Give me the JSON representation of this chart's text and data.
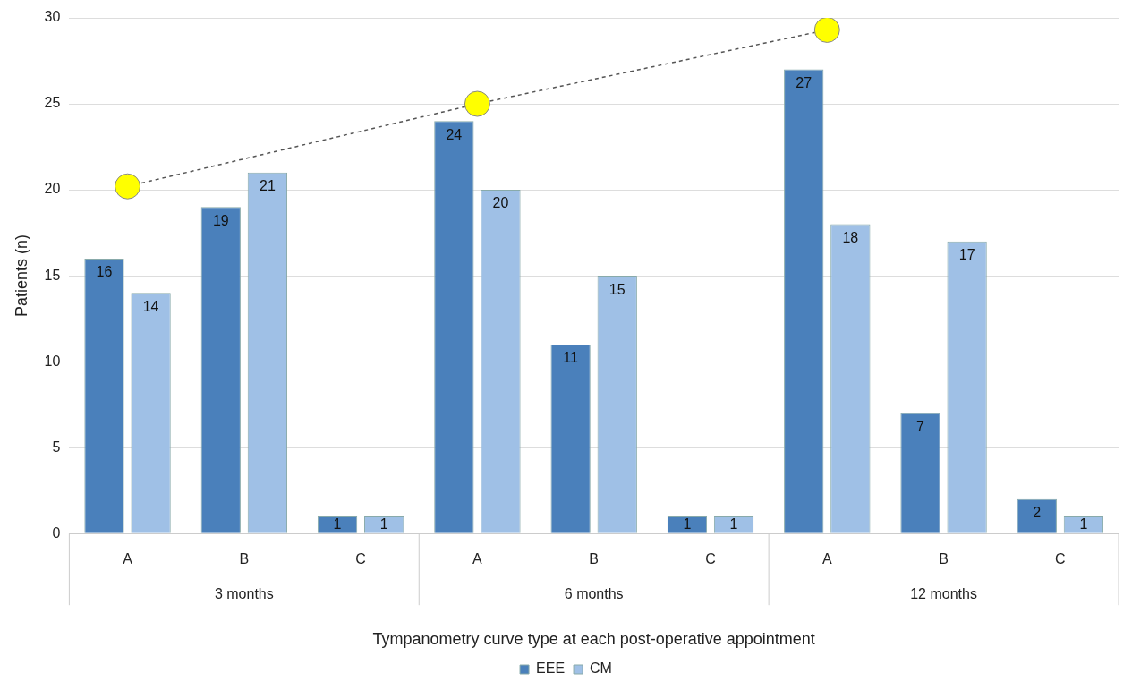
{
  "chart_data": {
    "type": "bar",
    "xlabel": "Tympanometry curve type at each post-operative appointment",
    "ylabel": "Patients (n)",
    "categories": [
      "A",
      "B",
      "C",
      "A",
      "B",
      "C",
      "A",
      "B",
      "C"
    ],
    "series": [
      {
        "name": "EEE",
        "color": "#4a80bb",
        "values": [
          16,
          19,
          1,
          24,
          11,
          1,
          27,
          7,
          2
        ],
        "value_labels": [
          "16",
          "19",
          "1",
          "24",
          "11",
          "1",
          "27",
          "7",
          "2"
        ]
      },
      {
        "name": "CM",
        "color": "#9fc0e6",
        "values": [
          14,
          21,
          1,
          20,
          15,
          1,
          18,
          17,
          1
        ],
        "value_labels": [
          "14",
          "21",
          "1",
          "20",
          "15",
          "1",
          "18",
          "17",
          "1"
        ]
      },
      {
        "type": "line",
        "color": "#ffff00",
        "line_style": "dashed",
        "marker": "circle",
        "values": [
          20.2,
          null,
          null,
          25,
          null,
          null,
          29.3,
          null,
          null
        ]
      }
    ],
    "annotations": [
      "3 months",
      "6 months",
      "12 months"
    ],
    "ylim": [
      0,
      30
    ],
    "yticks": [
      0,
      5,
      10,
      15,
      20,
      25,
      30
    ],
    "grid": "y",
    "legend": "bottom"
  }
}
